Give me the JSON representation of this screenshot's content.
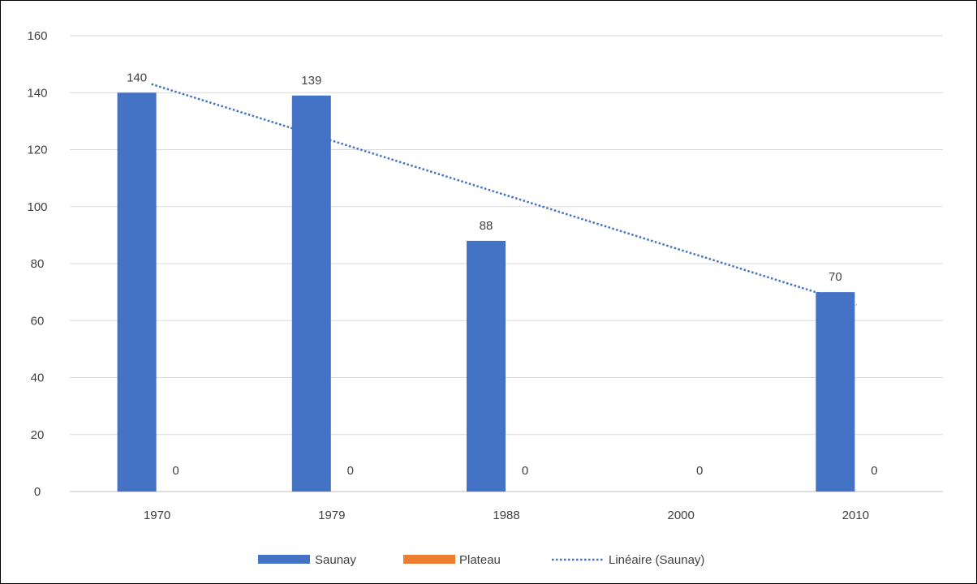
{
  "chart_data": {
    "type": "bar",
    "title": "",
    "xlabel": "",
    "ylabel": "",
    "categories": [
      "1970",
      "1979",
      "1988",
      "2000",
      "2010"
    ],
    "ylim": [
      0,
      160
    ],
    "y_ticks": [
      "0",
      "20",
      "40",
      "60",
      "80",
      "100",
      "120",
      "140",
      "160"
    ],
    "grid": true,
    "legend_position": "bottom",
    "series": [
      {
        "name": "Saunay",
        "values": [
          140,
          139,
          88,
          null,
          70
        ],
        "labels": [
          "140",
          "139",
          "88",
          "",
          "70"
        ],
        "color": "#4472C4"
      },
      {
        "name": "Plateau",
        "values": [
          0,
          0,
          0,
          0,
          0
        ],
        "labels": [
          "0",
          "0",
          "0",
          "0",
          "0"
        ],
        "color": "#ED7D31"
      }
    ],
    "trendline": {
      "name": "Linéaire (Saunay)",
      "type": "linear",
      "of_series": "Saunay",
      "start_value": 143,
      "end_value": 65.5,
      "color": "#4472C4",
      "style": "dotted"
    }
  }
}
